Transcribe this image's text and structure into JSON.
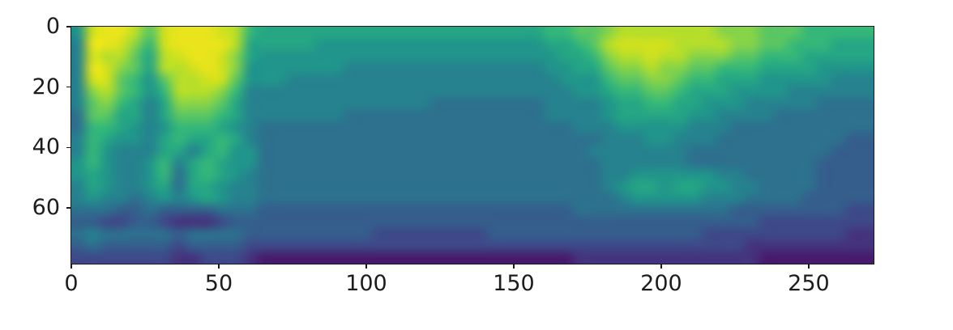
{
  "figure": {
    "background": "#ffffff",
    "spine_color": "#1a1a1a",
    "tick_label_color": "#1c1c1c"
  },
  "chart_data": {
    "type": "heatmap",
    "title": "",
    "xlabel": "",
    "ylabel": "",
    "legend": "none",
    "grid": "off",
    "colormap": "viridis",
    "colormap_stops": [
      [
        0.0,
        "#440154"
      ],
      [
        0.1,
        "#482878"
      ],
      [
        0.2,
        "#3e4989"
      ],
      [
        0.3,
        "#31688e"
      ],
      [
        0.4,
        "#26828e"
      ],
      [
        0.5,
        "#1f9e89"
      ],
      [
        0.6,
        "#35b779"
      ],
      [
        0.7,
        "#6ece58"
      ],
      [
        0.8,
        "#b5de2b"
      ],
      [
        0.9,
        "#dfe318"
      ],
      [
        1.0,
        "#fde725"
      ]
    ],
    "x_ticks": [
      0,
      50,
      100,
      150,
      200,
      250
    ],
    "x_tick_labels": [
      "0",
      "50",
      "100",
      "150",
      "200",
      "250"
    ],
    "y_ticks": [
      0,
      20,
      40,
      60
    ],
    "y_tick_labels": [
      "0",
      "20",
      "40",
      "60"
    ],
    "x_range": [
      0,
      272
    ],
    "y_range": [
      0,
      78.5
    ],
    "y_origin": "upper",
    "grid_cols": 56,
    "grid_rows": 20,
    "value_encoding": "each character is a hex digit 0-f; value = digit/15 mapped through viridis colormap",
    "rows": [
      [
        "7deecadeeedc9",
        "88888888888888888888",
        "99aa",
        "bcccccccbbbaaa99999"
      ],
      [
        "6eedb9deeeec8",
        "8888",
        "7777777777777777",
        "889a",
        "cddddccccbbaa999888"
      ],
      [
        "6dcca8cdeedb8",
        "777777777777777777777",
        "889",
        "bccdccbbbaa99988888"
      ],
      [
        "6edba8ccdedb7",
        "777777",
        "66666666666666",
        "7788",
        "abbcbbaa99988887777"
      ],
      [
        "6dda97accdda7",
        "77",
        "6666666666666666666",
        "777",
        "9aabba9988877777666"
      ],
      [
        "6bca979cccb96",
        "6666666666666666666666",
        "77",
        "899aa98887777666666"
      ],
      [
        "6ab9868bbba86",
        "666666666666",
        "55555555",
        "6666",
        "7889988777666665555"
      ],
      [
        "5aa8868aaa986",
        "666666",
        "55555555555555",
        "6666",
        "7888887766665555555"
      ],
      [
        "5998767999876",
        "5555555555555555555555",
        "66",
        "6777776665555555555"
      ],
      [
        "6987768988986",
        "555555555555555555555555",
        "6667766655555555544"
      ],
      [
        "6976668868977",
        "55555555555555555555555",
        "6",
        "6666665555555555444"
      ],
      [
        "7976679689877",
        "555555555555555555555555",
        "6666665555555554444"
      ],
      [
        "7876679589876",
        "555555555555555555555555",
        "6677777766555554444"
      ],
      [
        "6876678588766",
        "555555555555555555555555",
        "6788788776655554444"
      ],
      [
        "6766567678766",
        "555555555555555555555555",
        "5677777666555544444"
      ],
      [
        "5554454444555",
        "4444444444444444444444",
        "55",
        "5555555554444444433"
      ],
      [
        "4433443222344",
        "444444444444444444444444",
        "4444444444433333333"
      ],
      [
        "5655555455554",
        "44444444",
        "33333333",
        "44444444",
        "4444444333333333322"
      ],
      [
        "4544444344443",
        "333333333333333333333333",
        "3333333333222222222"
      ],
      [
        "3333333223332",
        "1111111111111111111111",
        "22",
        "2222222222211111111"
      ]
    ]
  }
}
